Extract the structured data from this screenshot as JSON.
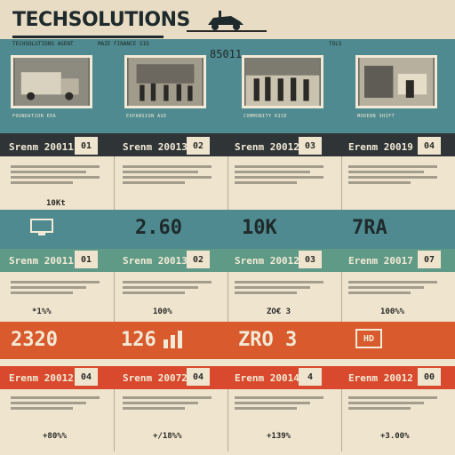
{
  "header": {
    "logo": "TECHSOLUTIONS",
    "center_number": "85011",
    "sub_left": "TECHSOLUTIONS AGENT",
    "sub_mid": "MAZE FINANCE SIO",
    "sub_right": "TOLS"
  },
  "photos": [
    {
      "caption": "FOUNDATION ERA"
    },
    {
      "caption": "EXPANSION AGE"
    },
    {
      "caption": "COMMUNITY RISE"
    },
    {
      "caption": "MODERN SHIFT"
    }
  ],
  "row1": [
    {
      "year": "Srenm 20011",
      "num": "01"
    },
    {
      "year": "Srenm 20013",
      "num": "02"
    },
    {
      "year": "Srenm 20012",
      "num": "03"
    },
    {
      "year": "Erenm 20019",
      "num": "04"
    }
  ],
  "stats1": [
    {
      "value": "10Kt"
    },
    {
      "value": "2.60"
    },
    {
      "value": "10K"
    },
    {
      "value": "7RA"
    }
  ],
  "row2": [
    {
      "year": "Srenm 20011",
      "num": "01"
    },
    {
      "year": "Srenm 20013",
      "num": "02"
    },
    {
      "year": "Srenm 20012",
      "num": "03"
    },
    {
      "year": "Erenm 20017",
      "num": "07"
    }
  ],
  "stats2": [
    {
      "value": "*1%%"
    },
    {
      "value": "100%"
    },
    {
      "value": "ZO€ 3"
    },
    {
      "value": "100%%"
    }
  ],
  "row3_big": [
    {
      "value": "2320"
    },
    {
      "value": "126"
    },
    {
      "value": "ZRO 3"
    },
    {
      "value": "HD"
    }
  ],
  "row3": [
    {
      "year": "Erenm 20012",
      "num": "04"
    },
    {
      "year": "Srenm 20072",
      "num": "04"
    },
    {
      "year": "Erenm 20014",
      "num": "4"
    },
    {
      "year": "Erenm 20012",
      "num": "00"
    }
  ],
  "stats3": [
    {
      "value": "+80%%"
    },
    {
      "value": "+/18%%"
    },
    {
      "value": "+139%"
    },
    {
      "value": "+3.00%"
    }
  ],
  "colors": {
    "teal": "#4e8a8f",
    "dark": "#2f3437",
    "green": "#5f9a86",
    "orange": "#d85a2d",
    "cream": "#efe5cf"
  }
}
